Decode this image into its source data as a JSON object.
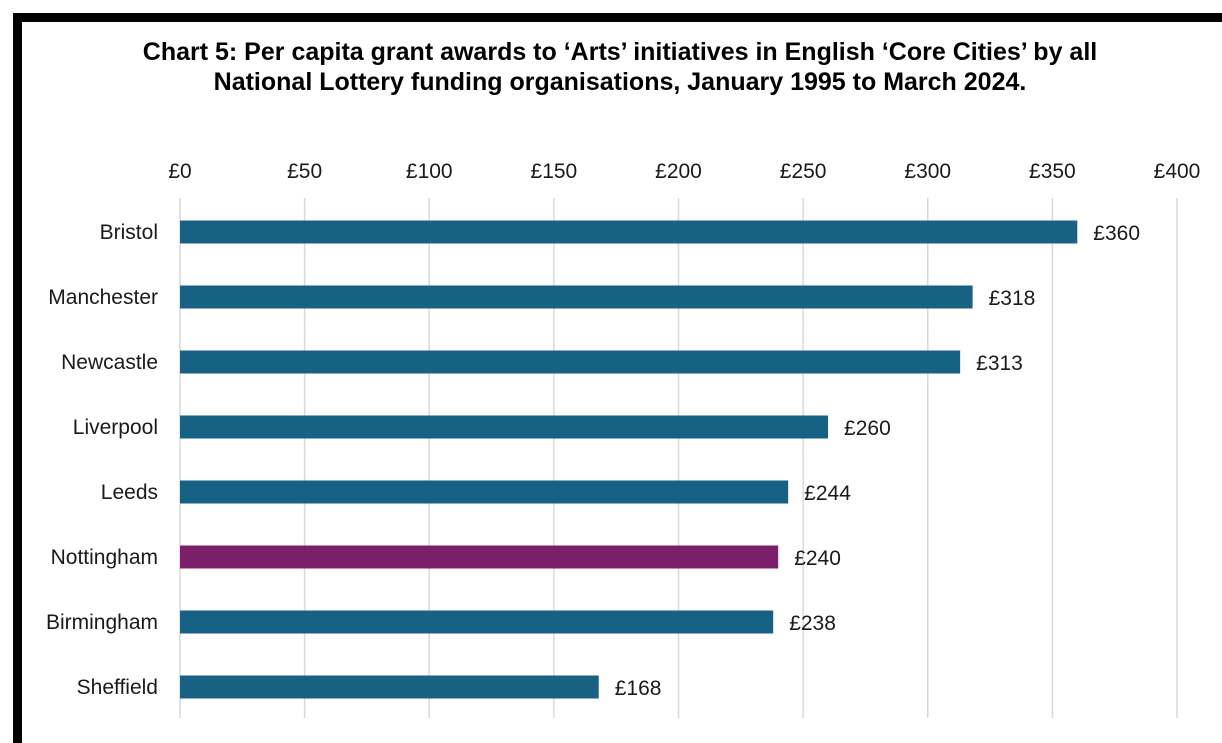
{
  "chart_data": {
    "type": "bar",
    "orientation": "horizontal",
    "title": "Chart 5: Per capita grant awards to ‘Arts’ initiatives in English ‘Core Cities’ by all National Lottery funding organisations, January 1995 to March 2024.",
    "categories": [
      "Bristol",
      "Manchester",
      "Newcastle",
      "Liverpool",
      "Leeds",
      "Nottingham",
      "Birmingham",
      "Sheffield"
    ],
    "values": [
      360,
      318,
      313,
      260,
      244,
      240,
      238,
      168
    ],
    "data_labels": [
      "£360",
      "£318",
      "£313",
      "£260",
      "£244",
      "£240",
      "£238",
      "£168"
    ],
    "highlight_category": "Nottingham",
    "xlim": [
      0,
      400
    ],
    "x_ticks": [
      0,
      50,
      100,
      150,
      200,
      250,
      300,
      350,
      400
    ],
    "x_tick_labels": [
      "£0",
      "£50",
      "£100",
      "£150",
      "£200",
      "£250",
      "£300",
      "£350",
      "£400"
    ],
    "x_axis_position": "top",
    "grid": true,
    "legend": "none",
    "colors": {
      "default": "#176184",
      "highlight": "#7b1f6b",
      "grid": "#d9d9d9"
    }
  }
}
